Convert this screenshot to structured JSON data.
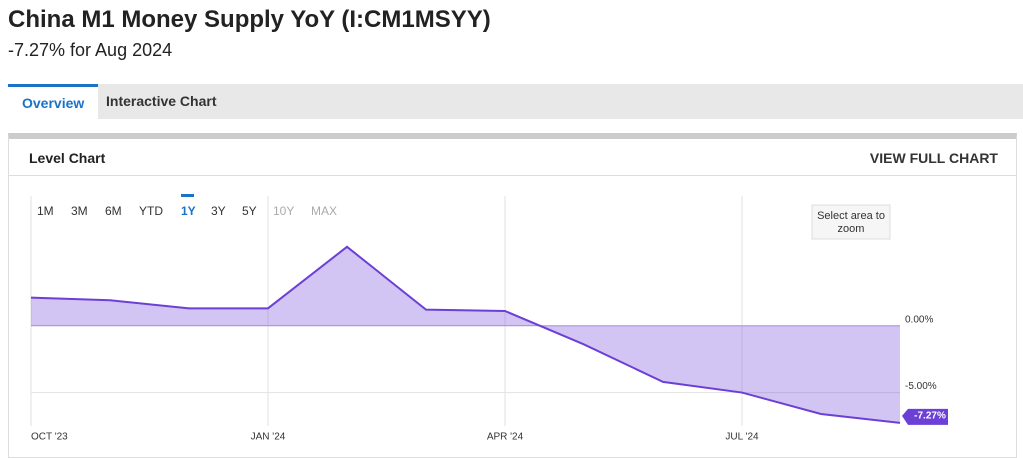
{
  "header": {
    "title": "China M1 Money Supply YoY (I:CM1MSYY)",
    "subtitle": "-7.27% for Aug 2024"
  },
  "tabs": [
    "Overview",
    "Interactive Chart"
  ],
  "panel": {
    "title": "Level Chart",
    "link": "VIEW FULL CHART",
    "ranges": [
      "1M",
      "3M",
      "6M",
      "YTD",
      "1Y",
      "3Y",
      "5Y",
      "10Y",
      "MAX"
    ],
    "zoom_hint": "Select area to zoom"
  },
  "chart_data": {
    "type": "area",
    "x": [
      "2023-09",
      "2023-10",
      "2023-11",
      "2023-12",
      "2024-01",
      "2024-02",
      "2024-03",
      "2024-04",
      "2024-05",
      "2024-06",
      "2024-07",
      "2024-08"
    ],
    "series": [
      {
        "name": "China M1 Money Supply YoY",
        "color": "#6c3fd6",
        "values": [
          2.1,
          1.9,
          1.3,
          1.3,
          5.9,
          1.2,
          1.1,
          -1.4,
          -4.2,
          -5.0,
          -6.6,
          -7.27
        ],
        "value_labels": [
          null,
          null,
          null,
          null,
          null,
          null,
          null,
          null,
          null,
          null,
          null,
          "-7.27%"
        ]
      }
    ],
    "xticks": [
      {
        "value": "2023-09",
        "label": "OCT '23"
      },
      {
        "value": "2023-12",
        "label": "JAN '24"
      },
      {
        "value": "2024-03",
        "label": "APR '24"
      },
      {
        "value": "2024-06",
        "label": "JUL '24"
      }
    ],
    "ylim": [
      -7.5,
      9.7
    ],
    "yticks": [
      {
        "value": 0,
        "label": "0.00%"
      },
      {
        "value": -5,
        "label": "-5.00%"
      }
    ],
    "grid": true
  }
}
